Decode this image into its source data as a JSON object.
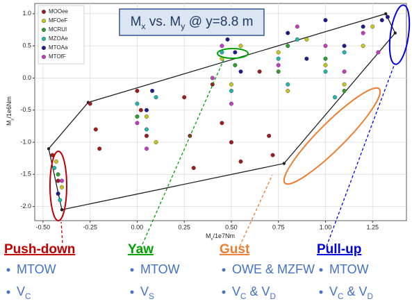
{
  "chart_data": {
    "type": "scatter",
    "title_parts": [
      "M",
      "x",
      " vs. M",
      "y",
      " @ y=8.8 m"
    ],
    "x_label_parts": [
      "M",
      "x",
      "/1e7Nm"
    ],
    "y_label_parts": [
      "M",
      "y",
      "/1e6Nm"
    ],
    "xlim": [
      -0.544,
      1.43
    ],
    "ylim": [
      -2.22,
      1.16
    ],
    "xticks": [
      {
        "value": -0.5,
        "label": "-0.50"
      },
      -0.25,
      {
        "value": 0,
        "label": "0.00"
      },
      0.25,
      {
        "value": 0.5,
        "label": "0.50"
      },
      0.75,
      {
        "value": 1,
        "label": "1.00"
      },
      1.25
    ],
    "yticks": [
      {
        "value": 1,
        "label": "1.0"
      },
      0.5,
      {
        "value": 0,
        "label": "0.0"
      },
      -0.5,
      {
        "value": -1,
        "label": "-1.0"
      },
      -1.5,
      {
        "value": -2,
        "label": "-2.0"
      }
    ],
    "grid": true,
    "legend": "upper left",
    "series": [
      {
        "name": "MOOee",
        "color": "#a01c1c",
        "x": [
          -0.45,
          -0.42,
          -0.25,
          -0.22,
          -0.2,
          0.0,
          0.02,
          0.05,
          0.25,
          0.28,
          0.3,
          0.4,
          0.45,
          0.5,
          0.55,
          0.65,
          0.7,
          0.72
        ],
        "values": [
          -1.2,
          -1.6,
          -0.4,
          -0.8,
          -1.1,
          -0.2,
          -0.5,
          -0.9,
          -0.3,
          -0.9,
          -1.4,
          -0.1,
          -0.7,
          -1.0,
          -1.3,
          0.1,
          -0.9,
          -1.2
        ]
      },
      {
        "name": "MFOeF",
        "color": "#c8c41e",
        "x": [
          -0.43,
          -0.4,
          0.05,
          0.1,
          0.45,
          0.5,
          0.55,
          0.75,
          0.8,
          0.9,
          1.0,
          1.1,
          1.2,
          1.25
        ],
        "values": [
          -1.3,
          -1.7,
          -0.6,
          -1.0,
          0.3,
          -0.1,
          0.5,
          0.4,
          -0.2,
          0.6,
          0.2,
          -0.1,
          0.5,
          0.8
        ]
      },
      {
        "name": "MCRUI",
        "color": "#2ca02c",
        "x": [
          0.45,
          0.5,
          0.52,
          0.75,
          0.8,
          1.0,
          1.1,
          -0.42,
          0.0
        ],
        "values": [
          0.7,
          0.75,
          0.2,
          0.1,
          0.5,
          0.3,
          -0.2,
          -1.5,
          -0.6
        ]
      },
      {
        "name": "MZOAe",
        "color": "#21b5b0",
        "x": [
          -0.44,
          -0.41,
          0.0,
          0.05,
          0.1,
          0.45,
          0.5,
          0.75,
          0.8,
          0.85,
          1.0,
          1.05,
          1.1
        ],
        "values": [
          -1.4,
          -1.9,
          -0.4,
          -0.8,
          -0.3,
          0.4,
          -0.2,
          0.3,
          -0.1,
          0.6,
          0.1,
          -0.3,
          0.4
        ]
      },
      {
        "name": "MTOAa",
        "color": "#1c1c90",
        "x": [
          -0.42,
          0.05,
          0.08,
          0.48,
          0.52,
          0.55,
          0.8,
          0.9,
          1.0,
          1.1,
          1.2,
          1.3,
          1.33
        ],
        "values": [
          -1.8,
          -0.5,
          -0.2,
          0.6,
          0.4,
          0.1,
          0.7,
          0.3,
          0.9,
          0.5,
          0.8,
          0.9,
          0.95
        ]
      },
      {
        "name": "MTOfF",
        "color": "#c23cc4",
        "x": [
          -0.4,
          0.0,
          0.05,
          0.4,
          0.45,
          0.5,
          0.75,
          0.85,
          1.0,
          1.1,
          1.2,
          1.28
        ],
        "values": [
          -1.6,
          -0.7,
          -1.1,
          0.0,
          0.5,
          -0.4,
          0.2,
          0.8,
          0.5,
          0.1,
          0.7,
          0.4
        ]
      }
    ],
    "envelope": {
      "color": "#222222",
      "x": [
        -0.4,
        -0.47,
        -0.26,
        1.32,
        1.37,
        0.78,
        -0.4
      ],
      "values": [
        -2.05,
        -1.1,
        -0.38,
        1.0,
        0.7,
        -1.33,
        -2.05
      ]
    },
    "cases": [
      {
        "heading": "Push-down",
        "color": "#c00000",
        "items": [
          [
            "MTOW"
          ],
          [
            "V",
            "C"
          ]
        ]
      },
      {
        "heading": "Yaw",
        "color": "#00a000",
        "items": [
          [
            "MTOW"
          ],
          [
            "V",
            "S"
          ]
        ]
      },
      {
        "heading": "Gust",
        "color": "#ed7d31",
        "items": [
          [
            "OWE & MZFW"
          ],
          [
            "V",
            "C",
            " & V",
            "D"
          ]
        ]
      },
      {
        "heading": "Pull-up",
        "color": "#0000e0",
        "items": [
          [
            "MTOW"
          ],
          [
            "V",
            "C",
            " & V",
            "D"
          ]
        ]
      }
    ]
  }
}
